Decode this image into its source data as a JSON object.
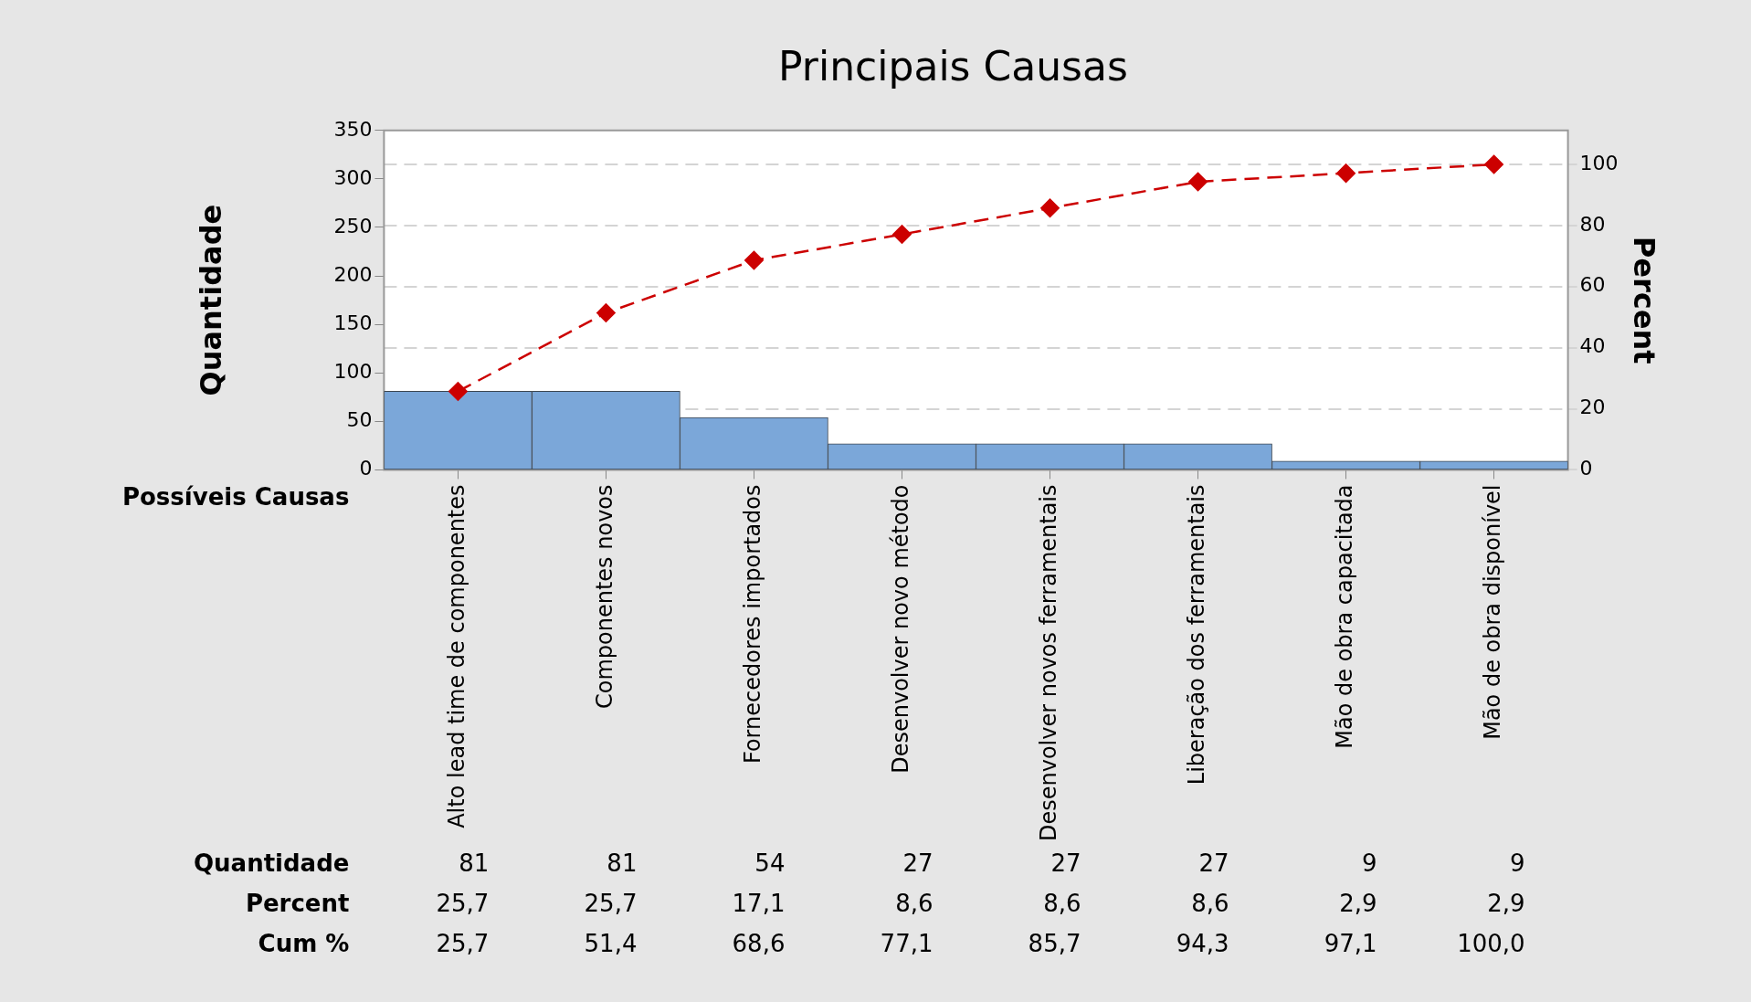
{
  "chart_data": {
    "type": "bar",
    "title": "Principais Causas",
    "xlabel": "Possíveis Causas",
    "ylabel": "Quantidade",
    "y2label": "Percent",
    "categories": [
      "Alto lead time de componentes",
      "Componentes novos",
      "Fornecedores importados",
      "Desenvolver novo método",
      "Desenvolver novos ferramentais",
      "Liberação dos ferramentais",
      "Mão de obra capacitada",
      "Mão de obra disponível"
    ],
    "series": [
      {
        "color": "#7ba7d9",
        "values": [
          81,
          81,
          54,
          27,
          27,
          27,
          9,
          9
        ],
        "value_labels": [
          "81",
          "81",
          "54",
          "27",
          "27",
          "27",
          "9",
          "9"
        ]
      },
      {
        "type": "line",
        "axis": "y2",
        "color": "#cc0000",
        "marker": "diamond",
        "line_style": "dashed",
        "values": [
          25.7,
          51.4,
          68.6,
          77.1,
          85.7,
          94.3,
          97.1,
          100.0
        ],
        "value_labels": [
          "25,7",
          "51,4",
          "68,6",
          "77,1",
          "85,7",
          "94,3",
          "97,1",
          "100,0"
        ]
      }
    ],
    "ylim": [
      0,
      350
    ],
    "yticks": [
      0,
      50,
      100,
      150,
      200,
      250,
      300,
      350
    ],
    "y2lim": [
      0,
      111.1
    ],
    "y2ticks": [
      0,
      20,
      40,
      60,
      80,
      100
    ],
    "annotations": [
      "Quantidade",
      "Percent",
      "Cum %",
      "25,7",
      "25,7",
      "17,1",
      "8,6",
      "8,6",
      "8,6",
      "2,9",
      "2,9"
    ],
    "grid": "y",
    "legend": false
  }
}
